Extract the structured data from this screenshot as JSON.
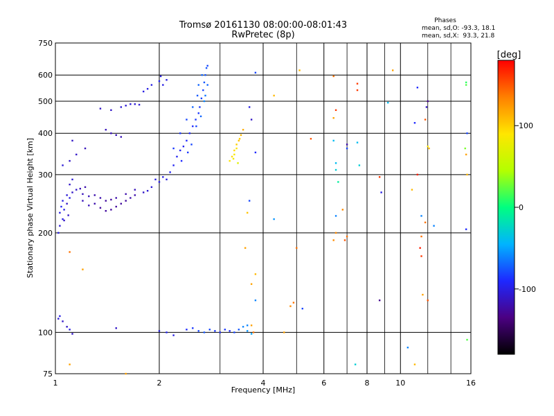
{
  "chart_data": {
    "type": "scatter",
    "title": "Tromsø 20161130 08:00:00-08:01:43",
    "subtitle": "RwPretec (8p)",
    "xlabel": "Frequency [MHz]",
    "ylabel": "Stationary phase Virtual Height [km]",
    "x_scale": "log",
    "y_scale": "log",
    "xlim": [
      1,
      16
    ],
    "ylim": [
      75,
      750
    ],
    "x_ticks": [
      1,
      2,
      4,
      6,
      8,
      10,
      16
    ],
    "y_ticks": [
      75,
      100,
      200,
      300,
      400,
      500,
      600,
      750
    ],
    "grid": true,
    "phase_info": {
      "title": "Phases",
      "line_o": "mean, sd,O: -93.3, 18.1",
      "line_x": "mean, sd,X:  93.3, 21.8"
    },
    "colorbar": {
      "label": "[deg]",
      "range": [
        -180,
        180
      ],
      "ticks": [
        100,
        0,
        -100
      ],
      "colors": [
        "#000000",
        "#4b0082",
        "#1e28ff",
        "#00b4ff",
        "#00ff80",
        "#b4ff00",
        "#ffe600",
        "#ff8000",
        "#ff0000"
      ]
    },
    "series": [
      {
        "points": [
          [
            1.02,
            200,
            -100
          ],
          [
            1.03,
            210,
            -105
          ],
          [
            1.05,
            220,
            -100
          ],
          [
            1.06,
            235,
            -100
          ],
          [
            1.08,
            245,
            -110
          ],
          [
            1.1,
            255,
            -100
          ],
          [
            1.12,
            265,
            -110
          ],
          [
            1.15,
            270,
            -110
          ],
          [
            1.18,
            272,
            -115
          ],
          [
            1.22,
            275,
            -120
          ],
          [
            1.05,
            250,
            -100
          ],
          [
            1.08,
            260,
            -105
          ],
          [
            1.1,
            280,
            -110
          ],
          [
            1.12,
            290,
            -105
          ],
          [
            1.04,
            240,
            -95
          ],
          [
            1.03,
            230,
            -100
          ],
          [
            1.06,
            218,
            -110
          ],
          [
            1.09,
            226,
            -110
          ],
          [
            1.2,
            250,
            -115
          ],
          [
            1.25,
            242,
            -115
          ],
          [
            1.3,
            245,
            -120
          ],
          [
            1.35,
            238,
            -125
          ],
          [
            1.4,
            233,
            -125
          ],
          [
            1.45,
            235,
            -125
          ],
          [
            1.5,
            240,
            -125
          ],
          [
            1.55,
            245,
            -125
          ],
          [
            1.6,
            250,
            -125
          ],
          [
            1.65,
            255,
            -120
          ],
          [
            1.7,
            260,
            -120
          ],
          [
            1.3,
            260,
            -120
          ],
          [
            1.35,
            255,
            -120
          ],
          [
            1.4,
            250,
            -125
          ],
          [
            1.45,
            252,
            -125
          ],
          [
            1.5,
            255,
            -120
          ],
          [
            1.2,
            262,
            -115
          ],
          [
            1.25,
            258,
            -115
          ],
          [
            1.6,
            262,
            -120
          ],
          [
            1.7,
            270,
            -115
          ],
          [
            1.8,
            265,
            -110
          ],
          [
            1.9,
            275,
            -105
          ],
          [
            2.0,
            285,
            -100
          ],
          [
            2.05,
            295,
            -100
          ],
          [
            1.95,
            290,
            -100
          ],
          [
            2.1,
            290,
            -100
          ],
          [
            1.85,
            268,
            -105
          ],
          [
            2.15,
            305,
            -95
          ],
          [
            2.2,
            320,
            -95
          ],
          [
            2.25,
            340,
            -95
          ],
          [
            2.3,
            355,
            -95
          ],
          [
            2.35,
            365,
            -95
          ],
          [
            2.4,
            380,
            -90
          ],
          [
            2.45,
            400,
            -90
          ],
          [
            2.5,
            420,
            -90
          ],
          [
            2.55,
            440,
            -85
          ],
          [
            2.6,
            460,
            -85
          ],
          [
            2.62,
            480,
            -85
          ],
          [
            2.65,
            510,
            -80
          ],
          [
            2.68,
            540,
            -80
          ],
          [
            2.7,
            570,
            -75
          ],
          [
            2.72,
            600,
            -75
          ],
          [
            2.74,
            630,
            -75
          ],
          [
            2.66,
            600,
            -70
          ],
          [
            2.6,
            560,
            -70
          ],
          [
            2.58,
            520,
            -75
          ],
          [
            2.5,
            480,
            -70
          ],
          [
            2.4,
            440,
            -80
          ],
          [
            2.3,
            400,
            -85
          ],
          [
            2.2,
            360,
            -85
          ],
          [
            2.32,
            330,
            -90
          ],
          [
            2.42,
            350,
            -85
          ],
          [
            2.48,
            370,
            -80
          ],
          [
            2.56,
            420,
            -80
          ],
          [
            2.64,
            450,
            -70
          ],
          [
            2.7,
            500,
            -60
          ],
          [
            2.72,
            520,
            -65
          ],
          [
            2.76,
            560,
            -70
          ],
          [
            2.76,
            640,
            -80
          ],
          [
            2.05,
            560,
            -100
          ],
          [
            2.1,
            580,
            -100
          ],
          [
            2.0,
            575,
            -95
          ],
          [
            1.8,
            535,
            -100
          ],
          [
            1.85,
            545,
            -100
          ],
          [
            1.9,
            560,
            -100
          ],
          [
            2.02,
            595,
            -100
          ],
          [
            1.05,
            320,
            -105
          ],
          [
            1.1,
            330,
            -110
          ],
          [
            1.15,
            345,
            -110
          ],
          [
            1.22,
            360,
            -115
          ],
          [
            1.12,
            380,
            -110
          ],
          [
            1.4,
            410,
            -115
          ],
          [
            1.45,
            400,
            -115
          ],
          [
            1.5,
            395,
            -115
          ],
          [
            1.55,
            390,
            -115
          ],
          [
            1.35,
            475,
            -110
          ],
          [
            1.45,
            470,
            -110
          ],
          [
            1.55,
            480,
            -105
          ],
          [
            1.6,
            485,
            -105
          ],
          [
            1.65,
            490,
            -105
          ],
          [
            1.7,
            490,
            -105
          ],
          [
            1.75,
            488,
            -105
          ],
          [
            3.2,
            330,
            90
          ],
          [
            3.25,
            340,
            95
          ],
          [
            3.3,
            355,
            95
          ],
          [
            3.35,
            370,
            100
          ],
          [
            3.4,
            380,
            105
          ],
          [
            3.45,
            395,
            110
          ],
          [
            3.5,
            410,
            115
          ],
          [
            3.3,
            345,
            85
          ],
          [
            3.35,
            360,
            90
          ],
          [
            3.42,
            385,
            100
          ],
          [
            3.28,
            335,
            80
          ],
          [
            3.38,
            325,
            70
          ],
          [
            1.02,
            110,
            -105
          ],
          [
            1.05,
            108,
            -110
          ],
          [
            1.08,
            104,
            -110
          ],
          [
            1.1,
            102,
            -100
          ],
          [
            1.12,
            99,
            -110
          ],
          [
            1.03,
            112,
            -100
          ],
          [
            1.5,
            103,
            -110
          ],
          [
            2.0,
            101,
            -100
          ],
          [
            2.1,
            100,
            -95
          ],
          [
            2.2,
            98,
            -100
          ],
          [
            2.4,
            102,
            -90
          ],
          [
            2.5,
            103,
            -85
          ],
          [
            2.6,
            101,
            -80
          ],
          [
            2.7,
            100,
            -75
          ],
          [
            2.8,
            102,
            -80
          ],
          [
            2.9,
            101,
            -85
          ],
          [
            3.0,
            100,
            -90
          ],
          [
            3.1,
            102,
            -85
          ],
          [
            3.2,
            101,
            -90
          ],
          [
            3.3,
            100,
            -80
          ],
          [
            3.4,
            102,
            -75
          ],
          [
            3.5,
            104,
            -60
          ],
          [
            3.6,
            101,
            -55
          ],
          [
            3.7,
            99,
            -50
          ],
          [
            3.75,
            100,
            140
          ],
          [
            3.7,
            105,
            120
          ],
          [
            3.8,
            610,
            -80
          ],
          [
            3.65,
            480,
            -100
          ],
          [
            3.7,
            440,
            -110
          ],
          [
            3.8,
            350,
            -90
          ],
          [
            3.65,
            250,
            -80
          ],
          [
            3.6,
            230,
            105
          ],
          [
            3.55,
            180,
            120
          ],
          [
            3.8,
            150,
            110
          ],
          [
            3.7,
            140,
            120
          ],
          [
            3.8,
            125,
            -60
          ],
          [
            3.6,
            105,
            -60
          ],
          [
            4.3,
            520,
            110
          ],
          [
            4.3,
            220,
            -55
          ],
          [
            4.6,
            100,
            120
          ],
          [
            4.8,
            120,
            130
          ],
          [
            4.9,
            123,
            140
          ],
          [
            5.2,
            118,
            -80
          ],
          [
            5.1,
            620,
            110
          ],
          [
            5.5,
            385,
            150
          ],
          [
            5.0,
            180,
            140
          ],
          [
            6.4,
            595,
            140
          ],
          [
            6.5,
            470,
            160
          ],
          [
            6.4,
            445,
            120
          ],
          [
            6.4,
            380,
            -40
          ],
          [
            6.5,
            325,
            -40
          ],
          [
            6.5,
            310,
            -30
          ],
          [
            6.6,
            285,
            -10
          ],
          [
            6.5,
            225,
            -60
          ],
          [
            6.4,
            190,
            130
          ],
          [
            6.5,
            200,
            130
          ],
          [
            7.0,
            370,
            -120
          ],
          [
            7.0,
            360,
            -80
          ],
          [
            6.8,
            235,
            130
          ],
          [
            6.9,
            190,
            150
          ],
          [
            7.0,
            195,
            140
          ],
          [
            7.5,
            565,
            160
          ],
          [
            7.5,
            540,
            160
          ],
          [
            7.5,
            375,
            -40
          ],
          [
            7.6,
            320,
            -30
          ],
          [
            7.4,
            80,
            -30
          ],
          [
            8.7,
            295,
            160
          ],
          [
            8.8,
            265,
            -100
          ],
          [
            8.7,
            125,
            -130
          ],
          [
            9.5,
            620,
            120
          ],
          [
            9.2,
            495,
            -40
          ],
          [
            10.5,
            90,
            -60
          ],
          [
            11.2,
            550,
            -90
          ],
          [
            11.0,
            430,
            -90
          ],
          [
            10.8,
            270,
            110
          ],
          [
            11.2,
            300,
            170
          ],
          [
            11.5,
            225,
            -60
          ],
          [
            11.8,
            215,
            140
          ],
          [
            11.5,
            195,
            140
          ],
          [
            11.4,
            180,
            170
          ],
          [
            11.5,
            170,
            160
          ],
          [
            11.6,
            130,
            120
          ],
          [
            12.0,
            125,
            150
          ],
          [
            12.0,
            500,
            -130
          ],
          [
            11.9,
            480,
            -110
          ],
          [
            11.8,
            440,
            150
          ],
          [
            12.0,
            365,
            90
          ],
          [
            12.1,
            360,
            110
          ],
          [
            12.5,
            210,
            -60
          ],
          [
            11.0,
            80,
            110
          ],
          [
            15.5,
            570,
            10
          ],
          [
            15.5,
            560,
            20
          ],
          [
            15.6,
            400,
            -80
          ],
          [
            15.4,
            360,
            30
          ],
          [
            15.5,
            345,
            120
          ],
          [
            15.6,
            300,
            110
          ],
          [
            15.5,
            205,
            -90
          ],
          [
            15.6,
            95,
            20
          ],
          [
            1.6,
            75,
            120
          ],
          [
            1.1,
            80,
            120
          ],
          [
            1.1,
            175,
            140
          ],
          [
            1.2,
            155,
            120
          ]
        ]
      }
    ]
  }
}
